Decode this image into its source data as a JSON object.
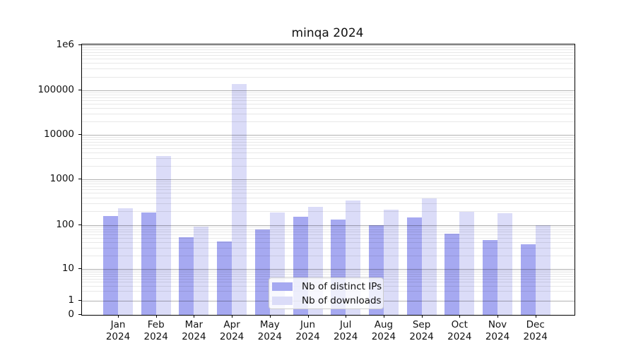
{
  "title": "minqa 2024",
  "colors": {
    "distinct_ips": "#a6a9f1",
    "downloads": "#dbdcf8",
    "grid_major": "#b0b0b0",
    "grid_minor": "#e8e8e8",
    "axis": "#000000"
  },
  "legend": {
    "items": [
      {
        "label": "Nb of distinct IPs",
        "color": "#a6a9f1"
      },
      {
        "label": "Nb of downloads",
        "color": "#dbdcf8"
      }
    ],
    "position": "inside-bottom-center"
  },
  "chart_data": {
    "type": "bar",
    "title": "minqa 2024",
    "yscale": "symlog",
    "ylim": [
      0,
      1000000
    ],
    "grid": {
      "major": true,
      "minor": true,
      "orientation": "horizontal"
    },
    "yticks": [
      {
        "label": "1e6",
        "value": 1000000
      },
      {
        "label": "100000",
        "value": 100000
      },
      {
        "label": "10000",
        "value": 10000
      },
      {
        "label": "1000",
        "value": 1000
      },
      {
        "label": "100",
        "value": 100
      },
      {
        "label": "10",
        "value": 10
      },
      {
        "label": "1",
        "value": 1
      },
      {
        "label": "0",
        "value": 0
      }
    ],
    "categories": [
      {
        "month": "Jan",
        "year": "2024"
      },
      {
        "month": "Feb",
        "year": "2024"
      },
      {
        "month": "Mar",
        "year": "2024"
      },
      {
        "month": "Apr",
        "year": "2024"
      },
      {
        "month": "May",
        "year": "2024"
      },
      {
        "month": "Jun",
        "year": "2024"
      },
      {
        "month": "Jul",
        "year": "2024"
      },
      {
        "month": "Aug",
        "year": "2024"
      },
      {
        "month": "Sep",
        "year": "2024"
      },
      {
        "month": "Oct",
        "year": "2024"
      },
      {
        "month": "Nov",
        "year": "2024"
      },
      {
        "month": "Dec",
        "year": "2024"
      }
    ],
    "series": [
      {
        "name": "Nb of distinct IPs",
        "color": "#a6a9f1",
        "values": [
          155,
          185,
          52,
          42,
          80,
          150,
          130,
          98,
          145,
          63,
          45,
          36
        ]
      },
      {
        "name": "Nb of downloads",
        "color": "#dbdcf8",
        "values": [
          230,
          3300,
          92,
          140000,
          190,
          250,
          345,
          215,
          385,
          195,
          180,
          100
        ]
      }
    ]
  }
}
